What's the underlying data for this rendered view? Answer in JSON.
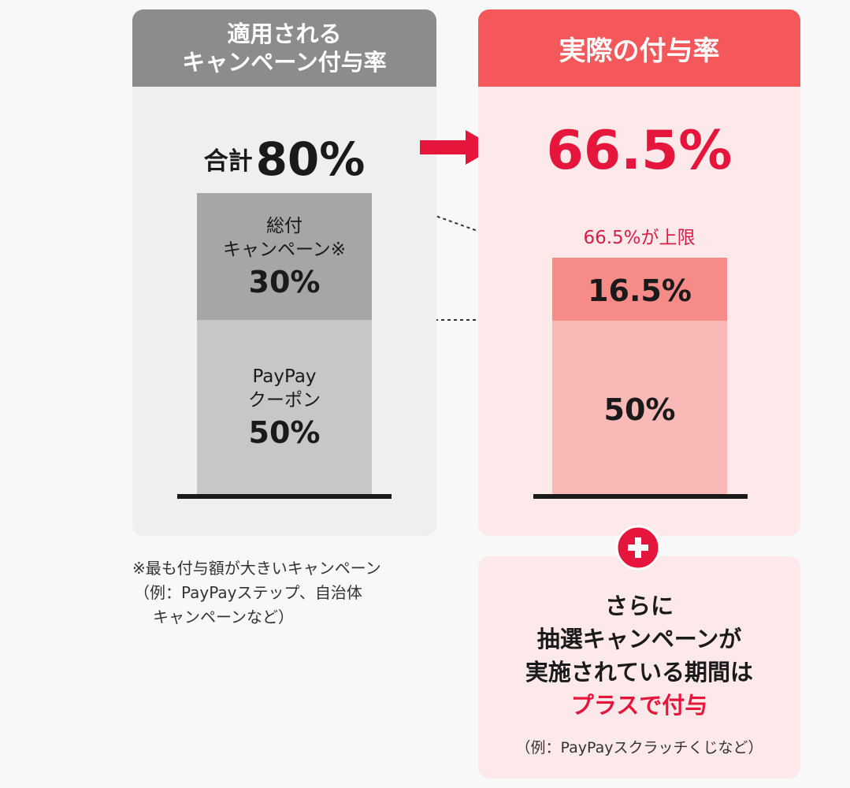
{
  "left": {
    "header_line1": "適用される",
    "header_line2": "キャンペーン付与率",
    "total_label": "合計",
    "total_value": "80%",
    "bar_campaign": {
      "label_line1": "総付",
      "label_line2": "キャンペーン※",
      "value": "30%"
    },
    "bar_coupon": {
      "label_line1": "PayPay",
      "label_line2": "クーポン",
      "value": "50%"
    }
  },
  "right": {
    "header": "実際の付与率",
    "total_value": "66.5%",
    "cap_label": "66.5%が上限",
    "bar_extra_value": "16.5%",
    "bar_base_value": "50%"
  },
  "footnote": {
    "line1": "※最も付与額が大きいキャンペーン",
    "line2": "（例：PayPayステップ、自治体",
    "line3": "キャンペーンなど）"
  },
  "bonus": {
    "line1": "さらに",
    "line2": "抽選キャンペーンが",
    "line3": "実施されている期間は",
    "highlight": "プラスで付与",
    "note": "（例：PayPayスクラッチくじなど）"
  },
  "colors": {
    "left_header": "#8c8c8c",
    "right_header": "#f4585a",
    "accent_red": "#e5153b",
    "campaign_bar": "#a6a6a6",
    "coupon_bar": "#c7c7c7",
    "extra_bar": "#f78b87",
    "base_bar": "#f9b9b6"
  },
  "icons": {
    "arrow": "arrow-right-icon",
    "plus": "plus-icon"
  }
}
